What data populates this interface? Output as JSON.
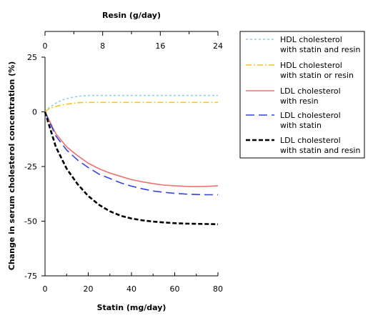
{
  "chart_data": {
    "type": "line",
    "title": "",
    "xlabel": "Statin (mg/day)",
    "x2label": "Resin (g/day)",
    "ylabel": "Change in serum cholesterol concentration (%)",
    "xlim": [
      0,
      80
    ],
    "x2lim": [
      0,
      24
    ],
    "ylim": [
      -75,
      25
    ],
    "xticks": [
      "0",
      "20",
      "40",
      "60",
      "80"
    ],
    "x2ticks": [
      "0",
      "8",
      "16",
      "24"
    ],
    "yticks": [
      "25",
      "0",
      "-25",
      "-50",
      "-75"
    ],
    "grid": false,
    "legend_position": "right",
    "series": [
      {
        "name_lines": [
          "HDL cholesterol",
          "with statin and resin"
        ],
        "color": "#8ecfe6",
        "dash": "3,3",
        "x": [
          0,
          2,
          5,
          8,
          12,
          16,
          20,
          30,
          40,
          50,
          60,
          70,
          80
        ],
        "y": [
          0,
          2,
          4,
          5.5,
          6.5,
          7.2,
          7.5,
          7.5,
          7.5,
          7.5,
          7.5,
          7.5,
          7.5
        ]
      },
      {
        "name_lines": [
          "HDL cholesterol",
          "with statin or resin"
        ],
        "color": "#f5c518",
        "dash": "8,3,2,3",
        "x": [
          0,
          2,
          5,
          8,
          12,
          16,
          20,
          30,
          40,
          50,
          60,
          70,
          80
        ],
        "y": [
          0,
          1.5,
          2.5,
          3.2,
          3.8,
          4.2,
          4.3,
          4.3,
          4.3,
          4.3,
          4.3,
          4.3,
          4.3
        ]
      },
      {
        "name_lines": [
          "LDL cholesterol",
          "with resin"
        ],
        "color": "#f07070",
        "dash": "",
        "x": [
          0,
          5,
          10,
          15,
          20,
          25,
          30,
          35,
          40,
          45,
          50,
          55,
          60,
          65,
          70,
          75,
          80
        ],
        "y": [
          0,
          -10,
          -16,
          -20,
          -23.5,
          -26,
          -28,
          -29.5,
          -31,
          -32,
          -32.8,
          -33.5,
          -33.8,
          -34.1,
          -34.2,
          -34.1,
          -33.8
        ]
      },
      {
        "name_lines": [
          "LDL cholesterol",
          "with statin"
        ],
        "color": "#3344dd",
        "dash": "12,6",
        "x": [
          0,
          5,
          10,
          15,
          20,
          25,
          30,
          35,
          40,
          45,
          50,
          55,
          60,
          65,
          70,
          75,
          80
        ],
        "y": [
          0,
          -11,
          -17.5,
          -22,
          -25.5,
          -28.5,
          -30.5,
          -32.5,
          -34,
          -35.2,
          -36.2,
          -36.8,
          -37.3,
          -37.6,
          -37.8,
          -37.9,
          -37.9
        ]
      },
      {
        "name_lines": [
          "LDL cholesterol",
          "with statin and resin"
        ],
        "color": "#000000",
        "dash": "6,3",
        "x": [
          0,
          5,
          10,
          15,
          20,
          25,
          30,
          35,
          40,
          45,
          50,
          55,
          60,
          65,
          70,
          75,
          80
        ],
        "y": [
          0,
          -16,
          -26,
          -33,
          -38.5,
          -42.5,
          -45.5,
          -47.5,
          -48.8,
          -49.6,
          -50.2,
          -50.6,
          -50.9,
          -51.1,
          -51.2,
          -51.3,
          -51.4
        ]
      }
    ]
  }
}
